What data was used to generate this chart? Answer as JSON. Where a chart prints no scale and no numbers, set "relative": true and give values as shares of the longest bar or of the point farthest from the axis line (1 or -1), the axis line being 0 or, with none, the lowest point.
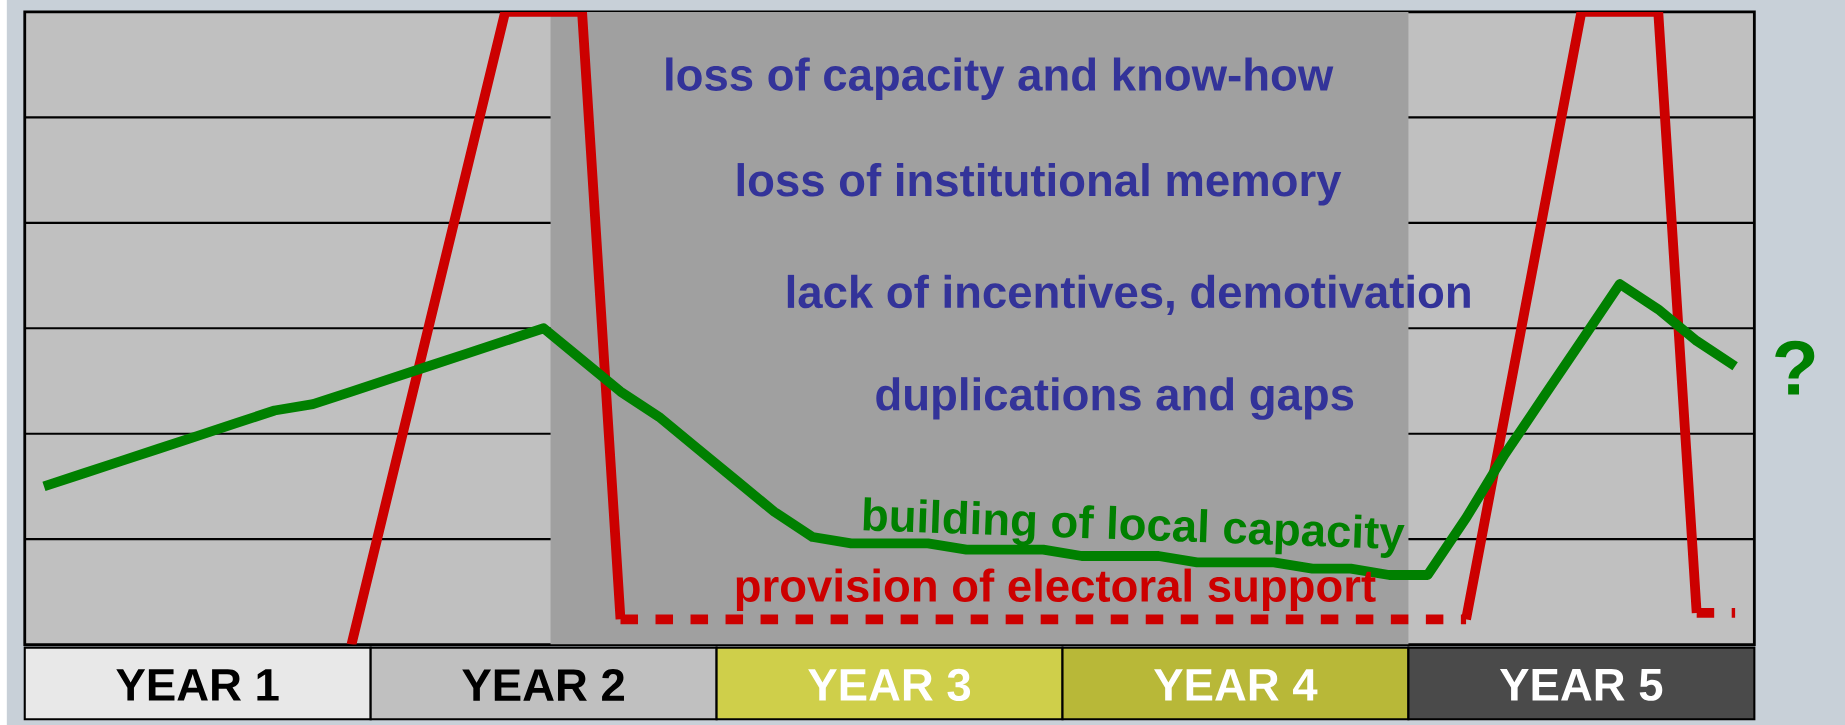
{
  "chart_data": {
    "type": "line",
    "relative": true,
    "categories": [
      null,
      null,
      null,
      null,
      "YEAR 1",
      null,
      null,
      null,
      null,
      null,
      null,
      null,
      null,
      "YEAR 2",
      null,
      null,
      null,
      null,
      null,
      null,
      null,
      null,
      "YEAR 3",
      null,
      null,
      null,
      null,
      null,
      null,
      null,
      null,
      "YEAR 4",
      null,
      null,
      null,
      null,
      null,
      null,
      null,
      null,
      "YEAR 5",
      null,
      null,
      null,
      null
    ],
    "tick_labels": "x",
    "grid": "y",
    "marker": "none",
    "series": [
      {
        "color": "#cc0000",
        "line_style": "solid",
        "values": [
          null,
          null,
          null,
          null,
          null,
          null,
          null,
          null,
          0,
          0.25,
          0.5,
          0.75,
          1,
          1,
          1,
          0.04,
          null,
          null,
          null,
          null,
          null,
          null,
          null,
          null,
          null,
          null,
          null,
          null,
          null,
          null,
          null,
          null,
          null,
          null,
          null,
          null,
          null,
          null,
          null,
          null,
          null,
          null,
          null,
          null,
          null
        ]
      },
      {
        "color": "#cc0000",
        "line_style": "dotted",
        "values": [
          null,
          null,
          null,
          null,
          null,
          null,
          null,
          null,
          null,
          null,
          null,
          null,
          null,
          null,
          null,
          0.04,
          0.04,
          0.04,
          0.04,
          0.04,
          0.04,
          0.04,
          0.04,
          0.04,
          0.04,
          0.04,
          0.04,
          0.04,
          0.04,
          0.04,
          0.04,
          0.04,
          0.04,
          0.04,
          0.04,
          0.04,
          0.04,
          0.04,
          null,
          null,
          null,
          null,
          null,
          null,
          null
        ]
      },
      {
        "color": "#cc0000",
        "line_style": "solid",
        "values": [
          null,
          null,
          null,
          null,
          null,
          null,
          null,
          null,
          null,
          null,
          null,
          null,
          null,
          null,
          null,
          null,
          null,
          null,
          null,
          null,
          null,
          null,
          null,
          null,
          null,
          null,
          null,
          null,
          null,
          null,
          null,
          null,
          null,
          null,
          null,
          null,
          null,
          0.04,
          0.36,
          0.68,
          1,
          1,
          1,
          0.05,
          null
        ]
      },
      {
        "color": "#cc0000",
        "line_style": "dotted",
        "values": [
          null,
          null,
          null,
          null,
          null,
          null,
          null,
          null,
          null,
          null,
          null,
          null,
          null,
          null,
          null,
          null,
          null,
          null,
          null,
          null,
          null,
          null,
          null,
          null,
          null,
          null,
          null,
          null,
          null,
          null,
          null,
          null,
          null,
          null,
          null,
          null,
          null,
          null,
          null,
          null,
          null,
          null,
          null,
          0.05,
          0.05
        ]
      },
      {
        "color": "#008000",
        "line_style": "solid",
        "values": [
          0.25,
          0.27,
          0.29,
          0.31,
          0.33,
          0.35,
          0.37,
          0.38,
          0.4,
          0.42,
          0.44,
          0.46,
          0.48,
          0.5,
          0.45,
          0.4,
          0.36,
          0.31,
          0.26,
          0.21,
          0.17,
          0.16,
          0.16,
          0.16,
          0.15,
          0.15,
          0.15,
          0.14,
          0.14,
          0.14,
          0.13,
          0.13,
          0.13,
          0.12,
          0.12,
          0.11,
          0.11,
          0.2,
          0.3,
          0.39,
          0.48,
          0.57,
          0.53,
          0.48,
          0.44
        ]
      }
    ],
    "annotations": [
      "loss of capacity and know-how",
      "loss of institutional memory",
      "lack of incentives, demotivation",
      "duplications and gaps",
      "building of local capacity",
      "provision of electoral support",
      "?"
    ]
  }
}
